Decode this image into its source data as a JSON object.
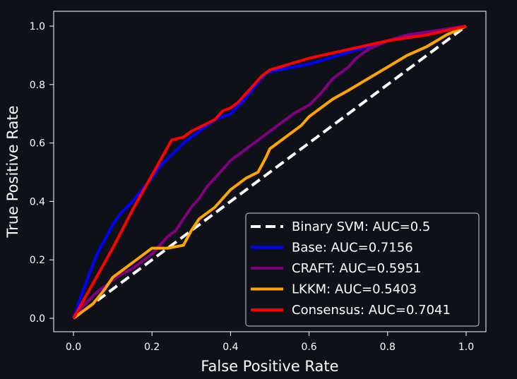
{
  "chart_data": {
    "type": "line",
    "title": "",
    "xlabel": "False Positive Rate",
    "ylabel": "True Positive Rate",
    "xlim": [
      0.0,
      1.0
    ],
    "ylim": [
      0.0,
      1.0
    ],
    "xticks": [
      "0.0",
      "0.2",
      "0.4",
      "0.6",
      "0.8",
      "1.0"
    ],
    "yticks": [
      "0.0",
      "0.2",
      "0.4",
      "0.6",
      "0.8",
      "1.0"
    ],
    "grid": false,
    "legend_position": "lower-right",
    "background_color": "#0e1117",
    "series": [
      {
        "name": "Binary SVM: AUC=0.5",
        "color": "#ffffff",
        "dashed": true,
        "x": [
          0.0,
          1.0
        ],
        "y": [
          0.0,
          1.0
        ]
      },
      {
        "name": "Base: AUC=0.7156",
        "color": "#0000ff",
        "dashed": false,
        "x": [
          0.0,
          0.02,
          0.04,
          0.06,
          0.08,
          0.1,
          0.12,
          0.15,
          0.18,
          0.2,
          0.22,
          0.25,
          0.28,
          0.3,
          0.33,
          0.36,
          0.4,
          0.43,
          0.46,
          0.49,
          0.52,
          0.56,
          0.6,
          0.65,
          0.7,
          0.75,
          0.8,
          0.85,
          0.9,
          0.95,
          1.0
        ],
        "y": [
          0.0,
          0.08,
          0.15,
          0.22,
          0.27,
          0.32,
          0.36,
          0.4,
          0.45,
          0.48,
          0.52,
          0.56,
          0.6,
          0.62,
          0.65,
          0.68,
          0.7,
          0.74,
          0.79,
          0.84,
          0.85,
          0.86,
          0.87,
          0.89,
          0.91,
          0.93,
          0.95,
          0.97,
          0.98,
          0.99,
          1.0
        ]
      },
      {
        "name": "CRAFT: AUC=0.5951",
        "color": "#800080",
        "dashed": false,
        "x": [
          0.0,
          0.03,
          0.06,
          0.09,
          0.12,
          0.15,
          0.18,
          0.2,
          0.22,
          0.24,
          0.26,
          0.28,
          0.3,
          0.32,
          0.34,
          0.36,
          0.38,
          0.4,
          0.42,
          0.45,
          0.48,
          0.5,
          0.53,
          0.56,
          0.6,
          0.63,
          0.66,
          0.7,
          0.72,
          0.75,
          0.8,
          0.85,
          0.9,
          0.95,
          1.0
        ],
        "y": [
          0.0,
          0.05,
          0.09,
          0.12,
          0.15,
          0.17,
          0.2,
          0.22,
          0.25,
          0.28,
          0.3,
          0.34,
          0.38,
          0.41,
          0.45,
          0.48,
          0.51,
          0.54,
          0.56,
          0.59,
          0.62,
          0.64,
          0.67,
          0.7,
          0.73,
          0.77,
          0.82,
          0.86,
          0.89,
          0.92,
          0.95,
          0.97,
          0.98,
          0.99,
          1.0
        ]
      },
      {
        "name": "LKKM: AUC=0.5403",
        "color": "#ffa500",
        "dashed": false,
        "x": [
          0.0,
          0.02,
          0.05,
          0.08,
          0.1,
          0.13,
          0.16,
          0.18,
          0.2,
          0.24,
          0.28,
          0.3,
          0.32,
          0.36,
          0.4,
          0.44,
          0.47,
          0.49,
          0.5,
          0.52,
          0.55,
          0.58,
          0.6,
          0.63,
          0.66,
          0.7,
          0.75,
          0.8,
          0.85,
          0.9,
          0.95,
          1.0
        ],
        "y": [
          0.0,
          0.02,
          0.05,
          0.1,
          0.14,
          0.17,
          0.2,
          0.22,
          0.24,
          0.24,
          0.25,
          0.3,
          0.34,
          0.38,
          0.44,
          0.48,
          0.5,
          0.55,
          0.58,
          0.6,
          0.63,
          0.66,
          0.69,
          0.72,
          0.75,
          0.78,
          0.82,
          0.86,
          0.9,
          0.93,
          0.97,
          1.0
        ]
      },
      {
        "name": "Consensus: AUC=0.7041",
        "color": "#ff0000",
        "dashed": false,
        "x": [
          0.0,
          0.05,
          0.1,
          0.15,
          0.2,
          0.25,
          0.28,
          0.3,
          0.33,
          0.36,
          0.38,
          0.4,
          0.42,
          0.44,
          0.46,
          0.48,
          0.5,
          0.55,
          0.6,
          0.7,
          0.8,
          0.9,
          1.0
        ],
        "y": [
          0.0,
          0.12,
          0.24,
          0.37,
          0.49,
          0.61,
          0.62,
          0.64,
          0.66,
          0.68,
          0.71,
          0.72,
          0.74,
          0.77,
          0.8,
          0.83,
          0.85,
          0.87,
          0.89,
          0.92,
          0.95,
          0.97,
          1.0
        ]
      }
    ]
  }
}
